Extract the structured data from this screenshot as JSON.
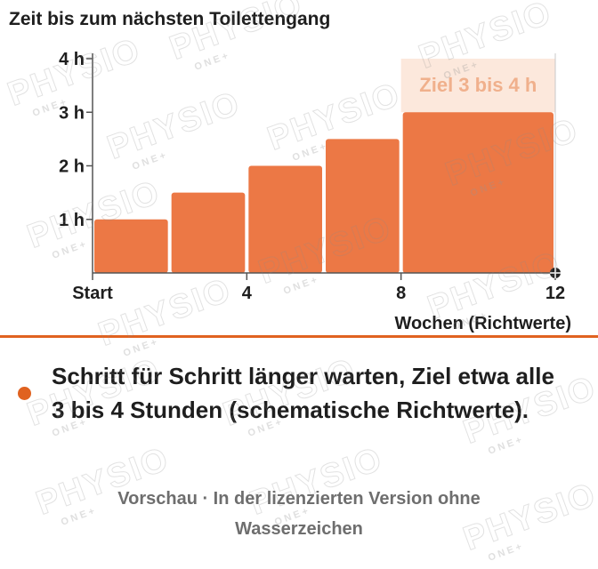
{
  "chart_data": {
    "type": "bar",
    "title": "Zeit bis zum nächsten Toilettengang",
    "xlabel": "Wochen (Richtwerte)",
    "ylabel": "",
    "x_ticks": [
      {
        "value": 0,
        "label": "Start"
      },
      {
        "value": 4,
        "label": "4"
      },
      {
        "value": 8,
        "label": "8"
      },
      {
        "value": 12,
        "label": "12"
      }
    ],
    "y_ticks": [
      {
        "value": 1,
        "label": "1 h"
      },
      {
        "value": 2,
        "label": "2 h"
      },
      {
        "value": 3,
        "label": "3 h"
      },
      {
        "value": 4,
        "label": "4 h"
      }
    ],
    "xlim": [
      0,
      12
    ],
    "ylim": [
      0,
      4
    ],
    "bars": [
      {
        "x_start": 0,
        "x_end": 2,
        "value": 1
      },
      {
        "x_start": 2,
        "x_end": 4,
        "value": 1.5
      },
      {
        "x_start": 4,
        "x_end": 6,
        "value": 2
      },
      {
        "x_start": 6,
        "x_end": 8,
        "value": 2.5
      },
      {
        "x_start": 8,
        "x_end": 12,
        "value": 3
      }
    ],
    "target_band": {
      "x_start": 8,
      "x_end": 12,
      "y_from": 3,
      "y_to": 4,
      "label": "Ziel 3 bis 4 h"
    },
    "grid": false
  },
  "bullet": {
    "text": "Schritt für Schritt länger warten, Ziel etwa alle 3 bis 4 Stunden (schematische Richtwerte)."
  },
  "footer": {
    "text": "Vorschau · In der lizenzierten Version ohne Wasserzeichen"
  },
  "watermark": {
    "brand": "PHYSIO",
    "sub": "ONE+"
  },
  "colors": {
    "bar": "#ec7845",
    "band": "#fce8dc",
    "band_label": "#f0b08c",
    "axis": "#555555",
    "text": "#1e1e1e",
    "accent": "#e06220",
    "footer_text": "#6e6e6e"
  }
}
